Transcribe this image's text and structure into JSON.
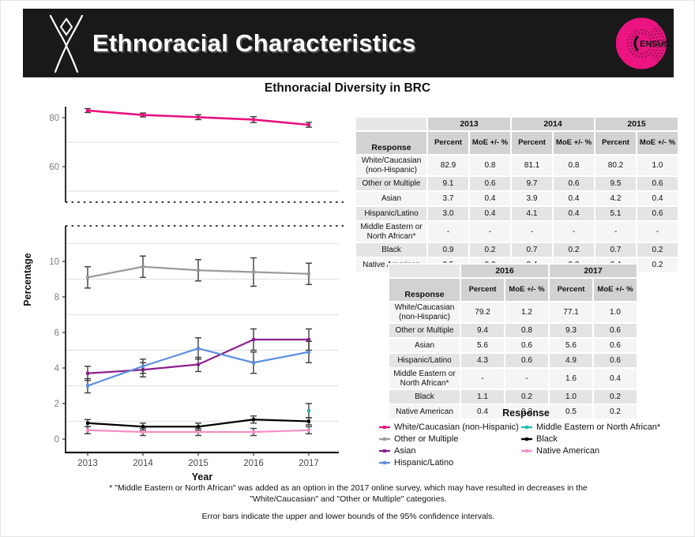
{
  "header": {
    "title": "Ethnoracial Characteristics",
    "census_logo_text": "ENSUS"
  },
  "chart_title": "Ethnoracial Diversity in BRC",
  "chart_data": {
    "type": "line",
    "title": "Ethnoracial Diversity in BRC",
    "xlabel": "Year",
    "ylabel": "Percentage",
    "x": [
      "2013",
      "2014",
      "2015",
      "2016",
      "2017"
    ],
    "broken_axis": true,
    "panels": {
      "top": {
        "range": [
          45.5,
          85
        ],
        "ticks": [
          60,
          80
        ],
        "gridlines": [
          50,
          70
        ]
      },
      "bottom": {
        "range": [
          0,
          12
        ],
        "ticks": [
          0,
          2,
          4,
          6,
          8,
          10
        ],
        "gridlines": [
          1,
          3,
          5,
          7,
          9,
          11
        ]
      }
    },
    "legend_position": "right-bottom",
    "series": [
      {
        "name": "White/Caucasian (non-Hispanic)",
        "panel": "top",
        "color": "#e8137f",
        "values": [
          82.9,
          81.1,
          80.2,
          79.2,
          77.1
        ],
        "moe": [
          0.8,
          0.8,
          1.0,
          1.2,
          1.0
        ]
      },
      {
        "name": "Other or Multiple",
        "panel": "bottom",
        "color": "#9b9b9b",
        "values": [
          9.1,
          9.7,
          9.5,
          9.4,
          9.3
        ],
        "moe": [
          0.6,
          0.6,
          0.6,
          0.8,
          0.6
        ]
      },
      {
        "name": "Asian",
        "panel": "bottom",
        "color": "#8c1f90",
        "values": [
          3.7,
          3.9,
          4.2,
          5.6,
          5.6
        ],
        "moe": [
          0.4,
          0.4,
          0.4,
          0.6,
          0.6
        ]
      },
      {
        "name": "Hispanic/Latino",
        "panel": "bottom",
        "color": "#5b8fe0",
        "values": [
          3.0,
          4.1,
          5.1,
          4.3,
          4.9
        ],
        "moe": [
          0.4,
          0.4,
          0.6,
          0.6,
          0.6
        ]
      },
      {
        "name": "Middle Eastern or North African*",
        "panel": "bottom",
        "color": "#23c0b1",
        "values": [
          null,
          null,
          null,
          null,
          1.6
        ],
        "moe": [
          null,
          null,
          null,
          null,
          0.4
        ]
      },
      {
        "name": "Black",
        "panel": "bottom",
        "color": "#000000",
        "values": [
          0.9,
          0.7,
          0.7,
          1.1,
          1.0
        ],
        "moe": [
          0.2,
          0.2,
          0.2,
          0.2,
          0.2
        ]
      },
      {
        "name": "Native American",
        "panel": "bottom",
        "color": "#f78fc4",
        "values": [
          0.5,
          0.4,
          0.4,
          0.4,
          0.5
        ],
        "moe": [
          0.2,
          0.2,
          0.2,
          0.2,
          0.2
        ]
      }
    ]
  },
  "tables": [
    {
      "years": [
        "2013",
        "2014",
        "2015"
      ],
      "subheaders": [
        "Percent",
        "MoE +/- %"
      ],
      "response_label": "Response",
      "rows": [
        {
          "label": "White/Caucasian (non-Hispanic)",
          "cells": [
            "82.9",
            "0.8",
            "81.1",
            "0.8",
            "80.2",
            "1.0"
          ]
        },
        {
          "label": "Other or Multiple",
          "cells": [
            "9.1",
            "0.6",
            "9.7",
            "0.6",
            "9.5",
            "0.6"
          ]
        },
        {
          "label": "Asian",
          "cells": [
            "3.7",
            "0.4",
            "3.9",
            "0.4",
            "4.2",
            "0.4"
          ]
        },
        {
          "label": "Hispanic/Latino",
          "cells": [
            "3.0",
            "0.4",
            "4.1",
            "0.4",
            "5.1",
            "0.6"
          ]
        },
        {
          "label": "Middle Eastern or North African*",
          "cells": [
            "-",
            "-",
            "-",
            "-",
            "-",
            "-"
          ]
        },
        {
          "label": "Black",
          "cells": [
            "0.9",
            "0.2",
            "0.7",
            "0.2",
            "0.7",
            "0.2"
          ]
        },
        {
          "label": "Native American",
          "cells": [
            "0.5",
            "0.2",
            "0.4",
            "0.2",
            "0.4",
            "0.2"
          ]
        }
      ]
    },
    {
      "years": [
        "2016",
        "2017"
      ],
      "subheaders": [
        "Percent",
        "MoE +/- %"
      ],
      "response_label": "Response",
      "rows": [
        {
          "label": "White/Caucasian (non-Hispanic)",
          "cells": [
            "79.2",
            "1.2",
            "77.1",
            "1.0"
          ]
        },
        {
          "label": "Other or Multiple",
          "cells": [
            "9.4",
            "0.8",
            "9.3",
            "0.6"
          ]
        },
        {
          "label": "Asian",
          "cells": [
            "5.6",
            "0.6",
            "5.6",
            "0.6"
          ]
        },
        {
          "label": "Hispanic/Latino",
          "cells": [
            "4.3",
            "0.6",
            "4.9",
            "0.6"
          ]
        },
        {
          "label": "Middle Eastern or North African*",
          "cells": [
            "-",
            "-",
            "1.6",
            "0.4"
          ]
        },
        {
          "label": "Black",
          "cells": [
            "1.1",
            "0.2",
            "1.0",
            "0.2"
          ]
        },
        {
          "label": "Native American",
          "cells": [
            "0.4",
            "0.2",
            "0.5",
            "0.2"
          ]
        }
      ]
    }
  ],
  "legend": {
    "title": "Response",
    "columns": [
      [
        "White/Caucasian (non-Hispanic)",
        "Other or Multiple",
        "Asian",
        "Hispanic/Latino"
      ],
      [
        "Middle Eastern or North African*",
        "Black",
        "Native American"
      ]
    ]
  },
  "footnotes": {
    "mena_note": "* \"Middle Eastern or North African\" was added as an option in the 2017 online survey, which may have resulted in decreases in the \"White/Caucasian\" and \"Other or Multiple\" categories.",
    "error_bar_note": "Error bars indicate the upper and lower bounds of the 95% confidence intervals."
  }
}
